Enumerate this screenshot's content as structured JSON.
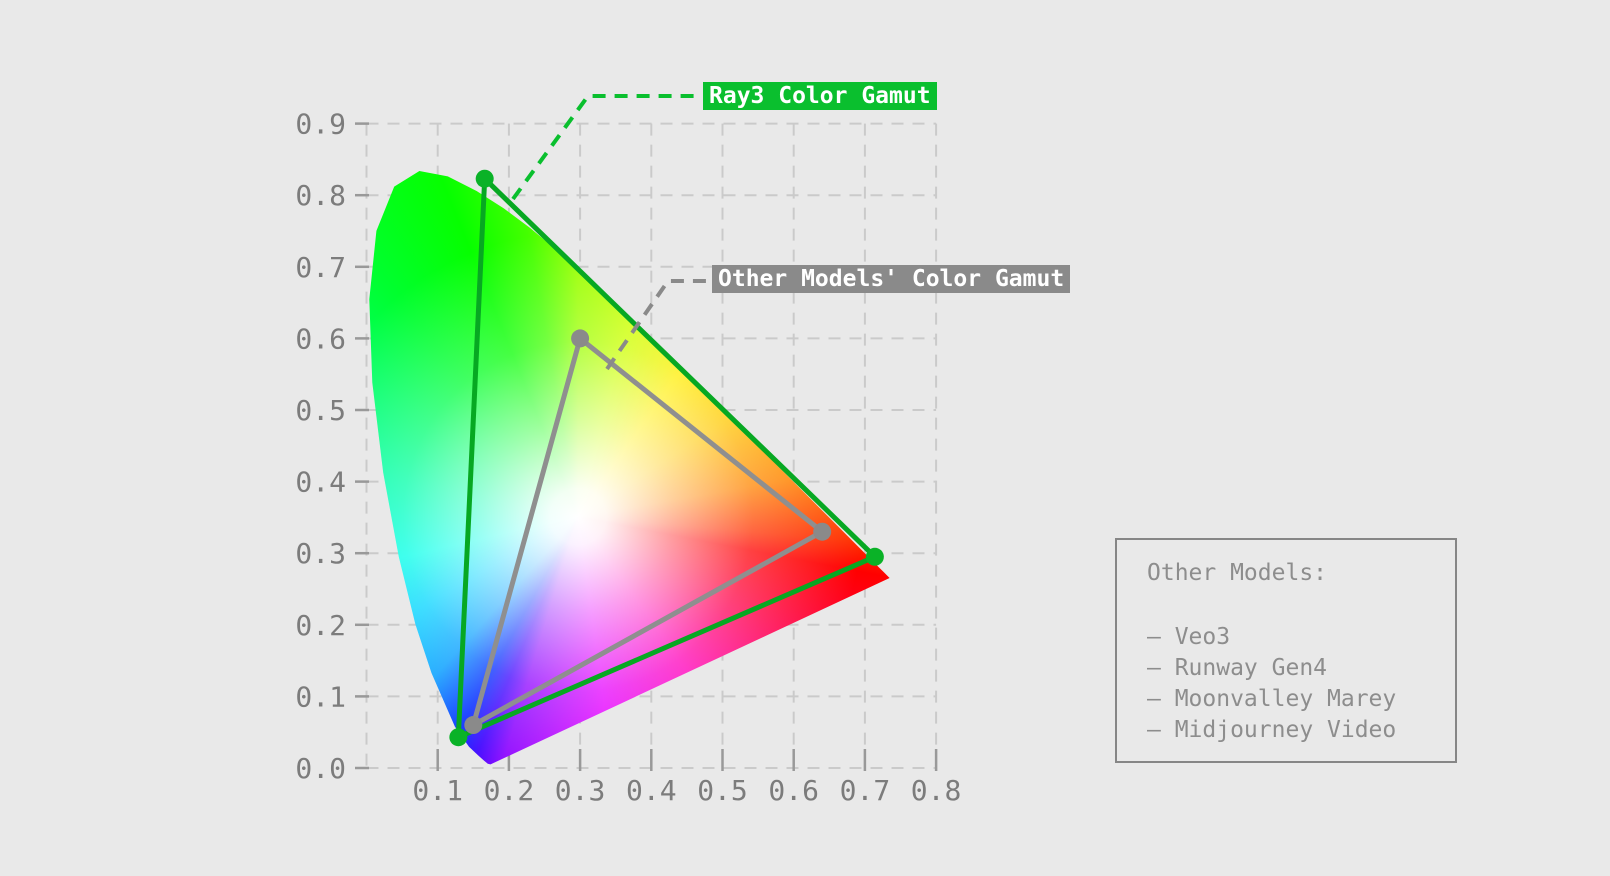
{
  "colors": {
    "background": "#e9e9e9",
    "grid": "#cacaca",
    "tick": "#999999",
    "tick_label": "#7c7c7c",
    "legend_text": "#8d8d8d",
    "legend_border": "#868686",
    "ray3_green": "#0abf2e",
    "ray3_line_green": "#07a822",
    "ray3_dot_green": "#0ab227",
    "other_gray": "#8a8a8a",
    "other_line_gray": "#8f8f8f",
    "label_text": "#ffffff"
  },
  "chart_data": {
    "type": "scatter",
    "title": "",
    "xlabel": "",
    "ylabel": "",
    "description": "CIE 1931 xy chromaticity diagram comparing the Ray3 color gamut triangle against other models' (Rec.709-like) gamut triangle over the spectral-locus horseshoe",
    "xlim": [
      0.0,
      0.8
    ],
    "ylim": [
      0.0,
      0.9
    ],
    "grid": true,
    "x_tick_labels": [
      "0.1",
      "0.2",
      "0.3",
      "0.4",
      "0.5",
      "0.6",
      "0.7",
      "0.8"
    ],
    "y_tick_labels": [
      "0.0",
      "0.1",
      "0.2",
      "0.3",
      "0.4",
      "0.5",
      "0.6",
      "0.7",
      "0.8",
      "0.9"
    ],
    "x_gridlines": [
      0.0,
      0.1,
      0.2,
      0.3,
      0.4,
      0.5,
      0.6,
      0.7,
      0.8
    ],
    "y_gridlines": [
      0.0,
      0.1,
      0.2,
      0.3,
      0.4,
      0.5,
      0.6,
      0.7,
      0.8,
      0.9
    ],
    "white_point": [
      0.297,
      0.351
    ],
    "series": [
      {
        "name": "Ray3 Color Gamut",
        "vertices": [
          [
            0.166,
            0.823
          ],
          [
            0.714,
            0.295
          ],
          [
            0.129,
            0.043
          ]
        ]
      },
      {
        "name": "Other Models' Color Gamut",
        "vertices": [
          [
            0.3,
            0.6
          ],
          [
            0.64,
            0.33
          ],
          [
            0.15,
            0.06
          ]
        ]
      }
    ],
    "spectral_locus": [
      [
        0.1741,
        0.005
      ],
      [
        0.1703,
        0.0058
      ],
      [
        0.1644,
        0.0109
      ],
      [
        0.1566,
        0.0177
      ],
      [
        0.144,
        0.0297
      ],
      [
        0.1241,
        0.0578
      ],
      [
        0.0913,
        0.1327
      ],
      [
        0.0687,
        0.2007
      ],
      [
        0.0454,
        0.295
      ],
      [
        0.0235,
        0.4127
      ],
      [
        0.0082,
        0.5384
      ],
      [
        0.0039,
        0.6548
      ],
      [
        0.0139,
        0.7502
      ],
      [
        0.0389,
        0.812
      ],
      [
        0.0743,
        0.8338
      ],
      [
        0.1142,
        0.8262
      ],
      [
        0.1547,
        0.8059
      ],
      [
        0.1929,
        0.7816
      ],
      [
        0.2296,
        0.7543
      ],
      [
        0.2658,
        0.7243
      ],
      [
        0.3016,
        0.6923
      ],
      [
        0.3373,
        0.6589
      ],
      [
        0.3731,
        0.6245
      ],
      [
        0.4087,
        0.5896
      ],
      [
        0.4441,
        0.5547
      ],
      [
        0.4788,
        0.5202
      ],
      [
        0.5125,
        0.4866
      ],
      [
        0.5448,
        0.4544
      ],
      [
        0.5752,
        0.4242
      ],
      [
        0.6029,
        0.3965
      ],
      [
        0.627,
        0.3725
      ],
      [
        0.6482,
        0.3514
      ],
      [
        0.6658,
        0.334
      ],
      [
        0.6801,
        0.3197
      ],
      [
        0.6915,
        0.3083
      ],
      [
        0.7079,
        0.292
      ],
      [
        0.719,
        0.2809
      ],
      [
        0.726,
        0.274
      ],
      [
        0.7347,
        0.2653
      ]
    ]
  },
  "annotations": {
    "ray3": {
      "text": "Ray3 Color Gamut"
    },
    "other": {
      "text": "Other Models' Color Gamut"
    }
  },
  "legend": {
    "title": "Other Models:",
    "bullet": "—",
    "items": [
      "Veo3",
      "Runway Gen4",
      "Moonvalley Marey",
      "Midjourney Video"
    ]
  }
}
